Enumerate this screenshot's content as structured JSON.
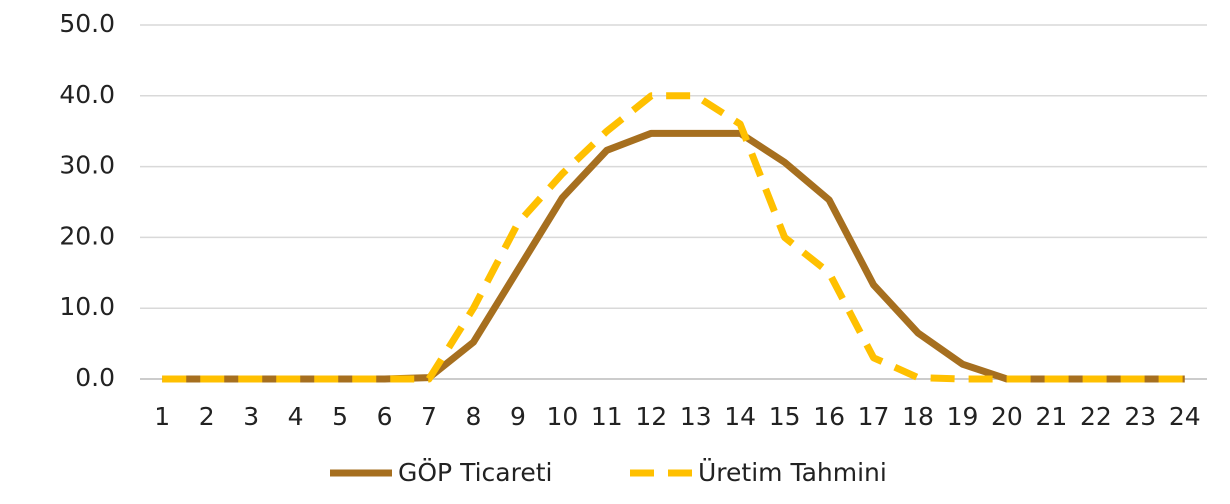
{
  "chart_data": {
    "type": "line",
    "categories": [
      "1",
      "2",
      "3",
      "4",
      "5",
      "6",
      "7",
      "8",
      "9",
      "10",
      "11",
      "12",
      "13",
      "14",
      "15",
      "16",
      "17",
      "18",
      "19",
      "20",
      "21",
      "22",
      "23",
      "24"
    ],
    "series": [
      {
        "name": "GÖP Ticareti",
        "color": "#a66f1f",
        "dash": false,
        "values": [
          0,
          0,
          0,
          0,
          0,
          0,
          0.2,
          5.2,
          15.4,
          25.6,
          32.3,
          34.7,
          34.7,
          34.7,
          30.6,
          25.3,
          13.3,
          6.5,
          2.1,
          0,
          0,
          0,
          0,
          0
        ]
      },
      {
        "name": "Üretim Tahmini",
        "color": "#ffc000",
        "dash": true,
        "values": [
          0,
          0,
          0,
          0,
          0,
          0,
          0,
          10,
          22,
          29,
          35,
          40,
          40,
          36,
          20,
          15,
          3,
          0.2,
          0,
          0,
          0,
          0,
          0,
          0
        ]
      }
    ],
    "ylim": [
      0,
      50
    ],
    "yticks": [
      {
        "value": 0,
        "label": "0.0"
      },
      {
        "value": 10,
        "label": "10.0"
      },
      {
        "value": 20,
        "label": "20.0"
      },
      {
        "value": 30,
        "label": "30.0"
      },
      {
        "value": 40,
        "label": "40.0"
      },
      {
        "value": 50,
        "label": "50.0"
      }
    ],
    "grid": true,
    "legend": "bottom"
  }
}
